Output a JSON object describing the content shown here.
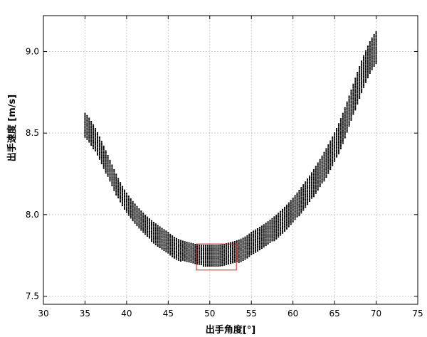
{
  "chart_data": {
    "type": "scatter",
    "title": "",
    "xlabel": "出手角度[°]",
    "ylabel": "出手速度 [m/s]",
    "xlim": [
      30,
      75
    ],
    "ylim": [
      7.45,
      9.22
    ],
    "xticks": [
      30,
      35,
      40,
      45,
      50,
      55,
      60,
      65,
      70,
      75
    ],
    "yticks": [
      7.5,
      8.0,
      8.5,
      9.0
    ],
    "grid": true,
    "point_color": "#000000",
    "highlight_color": "#cc2222",
    "series": [
      {
        "x_range": [
          35,
          70
        ],
        "x_step": 0.25,
        "lower_curve": [
          [
            35,
            8.47
          ],
          [
            40,
            8.01
          ],
          [
            45,
            7.76
          ],
          [
            48,
            7.7
          ],
          [
            50,
            7.68
          ],
          [
            52,
            7.69
          ],
          [
            55,
            7.75
          ],
          [
            60,
            7.95
          ],
          [
            65,
            8.32
          ],
          [
            70,
            8.92
          ]
        ],
        "upper_curve": [
          [
            35,
            8.62
          ],
          [
            40,
            8.13
          ],
          [
            45,
            7.89
          ],
          [
            48,
            7.82
          ],
          [
            50,
            7.81
          ],
          [
            52,
            7.82
          ],
          [
            55,
            7.89
          ],
          [
            60,
            8.1
          ],
          [
            65,
            8.5
          ],
          [
            70,
            9.12
          ]
        ]
      }
    ],
    "highlight_box": {
      "x": [
        48.4,
        53.2
      ],
      "y": [
        7.66,
        7.82
      ]
    }
  }
}
